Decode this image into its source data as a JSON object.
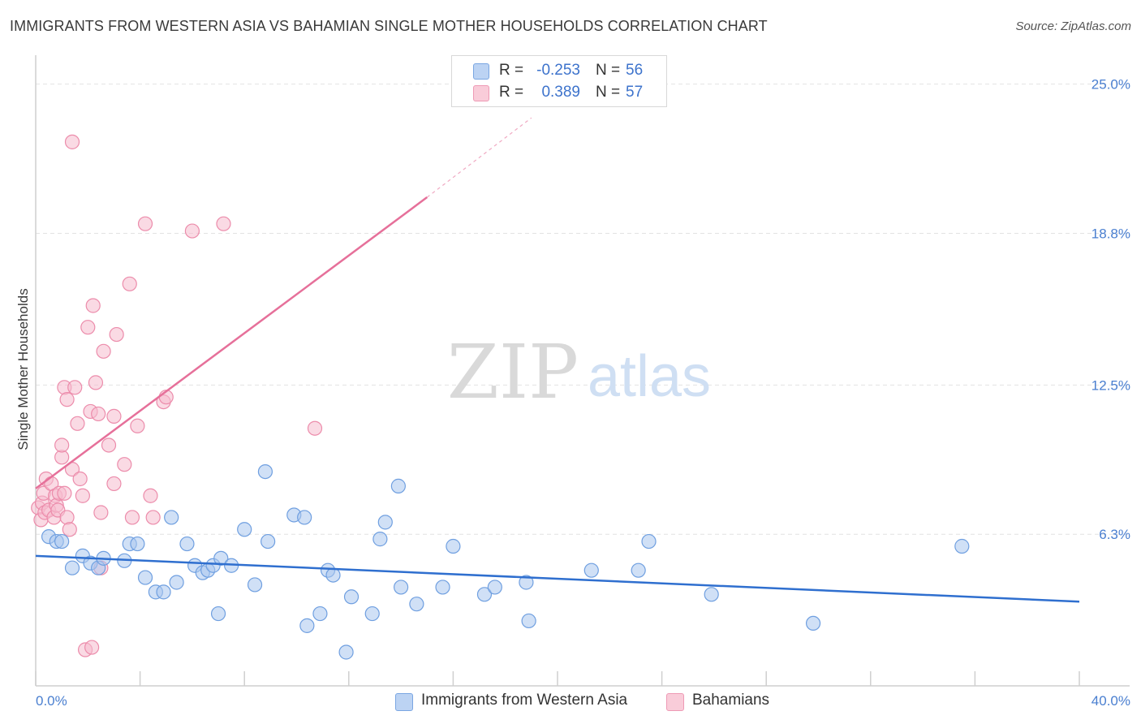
{
  "header": {
    "title": "IMMIGRANTS FROM WESTERN ASIA VS BAHAMIAN SINGLE MOTHER HOUSEHOLDS CORRELATION CHART",
    "source": "Source: ZipAtlas.com"
  },
  "watermark": {
    "zip": "ZIP",
    "atlas": "atlas"
  },
  "stats_legend": {
    "r_label": "R =",
    "n_label": "N =",
    "rows": [
      {
        "r": "-0.253",
        "n": "56"
      },
      {
        "r": "0.389",
        "n": "57"
      }
    ]
  },
  "colors": {
    "blue_fill": "#a9c6ee",
    "blue_stroke": "#6f9fe0",
    "blue_line": "#2f6fcf",
    "pink_fill": "#f6bccd",
    "pink_stroke": "#ec8cab",
    "pink_line": "#e6709a",
    "tick_label": "#4a7fd0",
    "grid": "#e2e2e2"
  },
  "chart_data": {
    "type": "scatter",
    "title": "IMMIGRANTS FROM WESTERN ASIA VS BAHAMIAN SINGLE MOTHER HOUSEHOLDS CORRELATION CHART",
    "xlabel": "",
    "ylabel": "Single Mother Households",
    "xlim": [
      0,
      40
    ],
    "ylim": [
      0,
      25.9
    ],
    "x_ticks": [
      0,
      4,
      8,
      12,
      16,
      20,
      24,
      28,
      32,
      36,
      40
    ],
    "x_tick_labels": {
      "min": "0.0%",
      "max": "40.0%"
    },
    "y_ticks": [
      6.3,
      12.5,
      18.8,
      25.0
    ],
    "y_tick_labels": [
      "6.3%",
      "12.5%",
      "18.8%",
      "25.0%"
    ],
    "legend": [
      "Immigrants from Western Asia",
      "Bahamians"
    ],
    "series": [
      {
        "name": "Immigrants from Western Asia",
        "trend": {
          "x": [
            0,
            40
          ],
          "y": [
            5.4,
            3.5
          ],
          "dashed_from": null
        },
        "points": [
          [
            0.5,
            6.2
          ],
          [
            0.8,
            6.0
          ],
          [
            1.0,
            6.0
          ],
          [
            1.4,
            4.9
          ],
          [
            1.8,
            5.4
          ],
          [
            2.1,
            5.1
          ],
          [
            2.4,
            4.9
          ],
          [
            2.6,
            5.3
          ],
          [
            3.4,
            5.2
          ],
          [
            3.6,
            5.9
          ],
          [
            3.9,
            5.9
          ],
          [
            4.2,
            4.5
          ],
          [
            4.6,
            3.9
          ],
          [
            4.9,
            3.9
          ],
          [
            5.2,
            7.0
          ],
          [
            5.4,
            4.3
          ],
          [
            5.8,
            5.9
          ],
          [
            6.1,
            5.0
          ],
          [
            6.4,
            4.7
          ],
          [
            6.6,
            4.8
          ],
          [
            6.8,
            5.0
          ],
          [
            7.0,
            3.0
          ],
          [
            7.1,
            5.3
          ],
          [
            7.5,
            5.0
          ],
          [
            8.0,
            6.5
          ],
          [
            8.4,
            4.2
          ],
          [
            8.9,
            6.0
          ],
          [
            8.8,
            8.9
          ],
          [
            9.9,
            7.1
          ],
          [
            10.3,
            7.0
          ],
          [
            10.4,
            2.5
          ],
          [
            10.9,
            3.0
          ],
          [
            11.2,
            4.8
          ],
          [
            11.4,
            4.6
          ],
          [
            11.9,
            1.4
          ],
          [
            12.1,
            3.7
          ],
          [
            12.9,
            3.0
          ],
          [
            13.2,
            6.1
          ],
          [
            13.4,
            6.8
          ],
          [
            13.9,
            8.3
          ],
          [
            14.0,
            4.1
          ],
          [
            14.6,
            3.4
          ],
          [
            15.6,
            4.1
          ],
          [
            16.0,
            5.8
          ],
          [
            17.2,
            3.8
          ],
          [
            17.6,
            4.1
          ],
          [
            18.8,
            4.3
          ],
          [
            18.9,
            2.7
          ],
          [
            21.3,
            4.8
          ],
          [
            23.1,
            4.8
          ],
          [
            23.5,
            6.0
          ],
          [
            25.9,
            3.8
          ],
          [
            29.8,
            2.6
          ],
          [
            35.5,
            5.8
          ]
        ]
      },
      {
        "name": "Bahamians",
        "trend": {
          "x": [
            0,
            15
          ],
          "y": [
            8.2,
            20.3
          ],
          "dashed_to": [
            19,
            23.6
          ]
        },
        "points": [
          [
            0.1,
            7.4
          ],
          [
            0.2,
            6.9
          ],
          [
            0.25,
            7.6
          ],
          [
            0.3,
            8.0
          ],
          [
            0.35,
            7.2
          ],
          [
            0.4,
            8.6
          ],
          [
            0.5,
            7.3
          ],
          [
            0.6,
            8.4
          ],
          [
            0.7,
            7.0
          ],
          [
            0.75,
            7.9
          ],
          [
            0.8,
            7.5
          ],
          [
            0.85,
            7.3
          ],
          [
            0.9,
            8.0
          ],
          [
            1.0,
            9.5
          ],
          [
            1.0,
            10.0
          ],
          [
            1.1,
            8.0
          ],
          [
            1.1,
            12.4
          ],
          [
            1.2,
            11.9
          ],
          [
            1.2,
            7.0
          ],
          [
            1.3,
            6.5
          ],
          [
            1.4,
            9.0
          ],
          [
            1.4,
            22.6
          ],
          [
            1.5,
            12.4
          ],
          [
            1.6,
            10.9
          ],
          [
            1.7,
            8.6
          ],
          [
            1.8,
            7.9
          ],
          [
            1.9,
            1.5
          ],
          [
            2.0,
            14.9
          ],
          [
            2.1,
            11.4
          ],
          [
            2.15,
            1.6
          ],
          [
            2.2,
            15.8
          ],
          [
            2.3,
            12.6
          ],
          [
            2.4,
            11.3
          ],
          [
            2.5,
            4.9
          ],
          [
            2.5,
            7.2
          ],
          [
            2.6,
            13.9
          ],
          [
            2.8,
            10.0
          ],
          [
            3.0,
            8.4
          ],
          [
            3.0,
            11.2
          ],
          [
            3.1,
            14.6
          ],
          [
            3.4,
            9.2
          ],
          [
            3.6,
            16.7
          ],
          [
            3.7,
            7.0
          ],
          [
            3.9,
            10.8
          ],
          [
            4.2,
            19.2
          ],
          [
            4.4,
            7.9
          ],
          [
            4.5,
            7.0
          ],
          [
            4.9,
            11.8
          ],
          [
            5.0,
            12.0
          ],
          [
            6.0,
            18.9
          ],
          [
            7.2,
            19.2
          ],
          [
            10.7,
            10.7
          ]
        ]
      }
    ]
  }
}
